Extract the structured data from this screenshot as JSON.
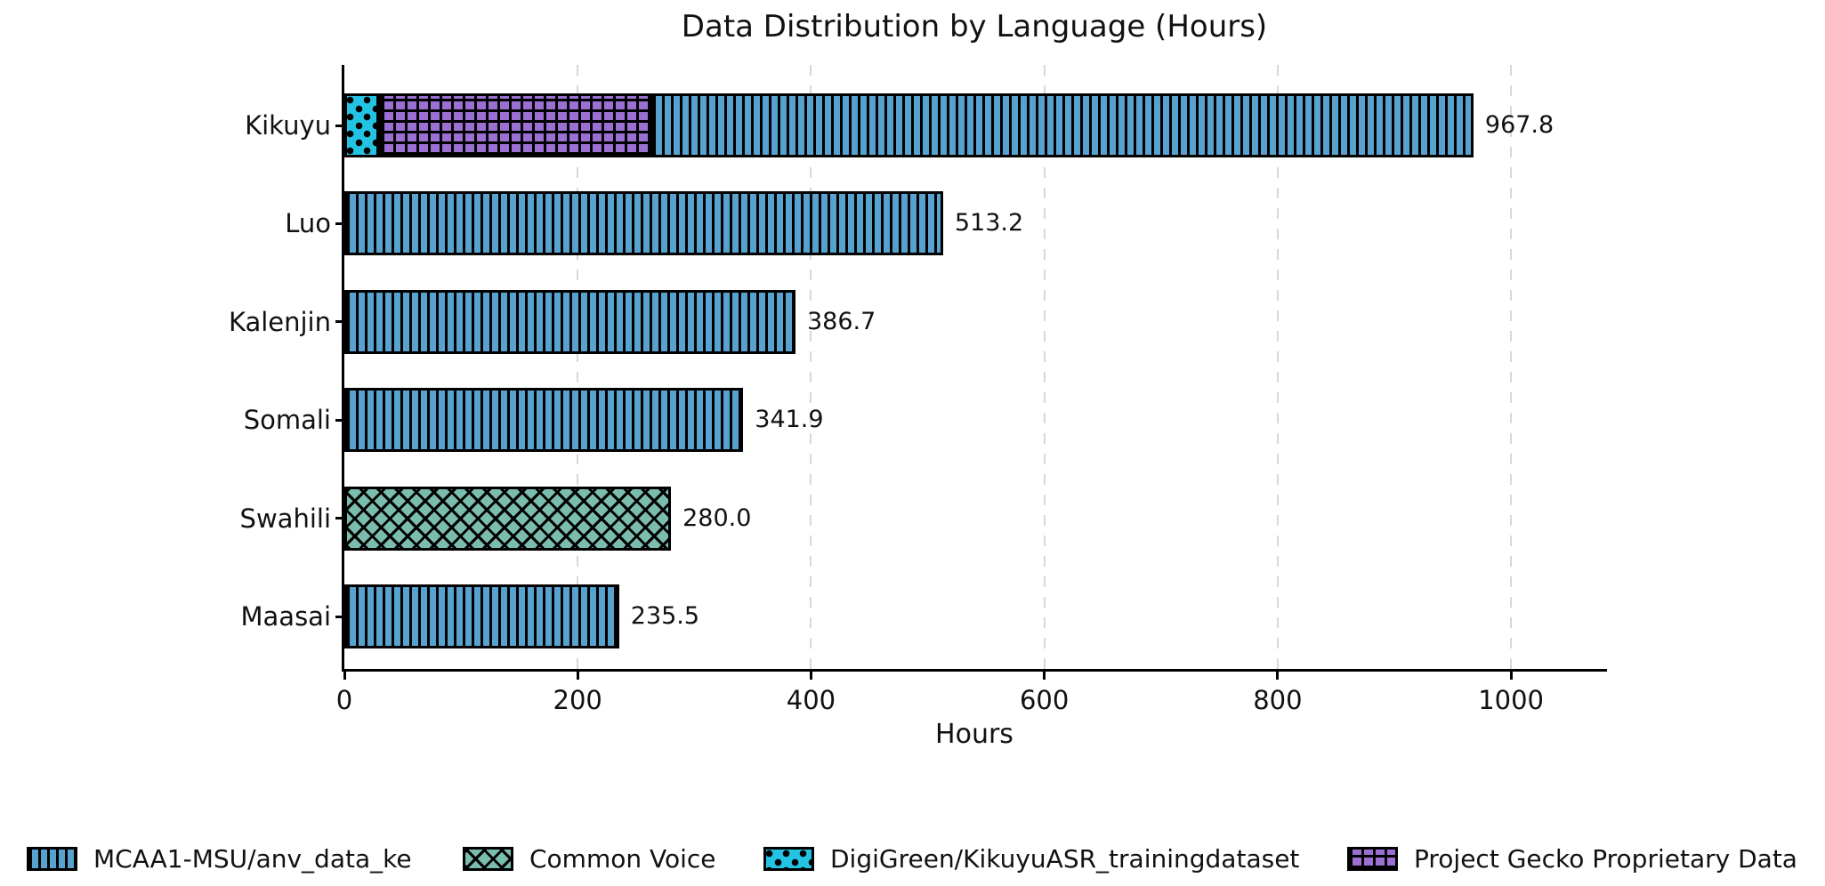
{
  "chart_data": {
    "type": "bar",
    "orientation": "horizontal-stacked",
    "title": "Data Distribution by Language (Hours)",
    "xlabel": "Hours",
    "axis": {
      "xticks": [
        "0",
        "200",
        "400",
        "600",
        "800",
        "1000"
      ],
      "xtick_values": [
        0,
        200,
        400,
        600,
        800,
        1000
      ],
      "xlim": [
        0,
        1080
      ],
      "grid": "vertical-dashed"
    },
    "categories": [
      "Kikuyu",
      "Luo",
      "Kalenjin",
      "Somali",
      "Swahili",
      "Maasai"
    ],
    "totals": [
      967.8,
      513.2,
      386.7,
      341.9,
      280.0,
      235.5
    ],
    "bars": [
      {
        "label": "Kikuyu",
        "total_label": "967.8",
        "segments": [
          {
            "source": "DigiGreen/KikuyuASR_trainingdataset",
            "hours": 30.0
          },
          {
            "source": "Project Gecko Proprietary Data",
            "hours": 232.0
          },
          {
            "source": "MCAA1-MSU/anv_data_ke",
            "hours": 705.8
          }
        ]
      },
      {
        "label": "Luo",
        "total_label": "513.2",
        "segments": [
          {
            "source": "MCAA1-MSU/anv_data_ke",
            "hours": 513.2
          }
        ]
      },
      {
        "label": "Kalenjin",
        "total_label": "386.7",
        "segments": [
          {
            "source": "MCAA1-MSU/anv_data_ke",
            "hours": 386.7
          }
        ]
      },
      {
        "label": "Somali",
        "total_label": "341.9",
        "segments": [
          {
            "source": "MCAA1-MSU/anv_data_ke",
            "hours": 341.9
          }
        ]
      },
      {
        "label": "Swahili",
        "total_label": "280.0",
        "segments": [
          {
            "source": "Common Voice",
            "hours": 280.0
          }
        ]
      },
      {
        "label": "Maasai",
        "total_label": "235.5",
        "segments": [
          {
            "source": "MCAA1-MSU/anv_data_ke",
            "hours": 235.5
          }
        ]
      }
    ],
    "sources": {
      "MCAA1-MSU/anv_data_ke": {
        "fill": "#58a2d0",
        "hatch": "vertical-lines"
      },
      "Common Voice": {
        "fill": "#7abcae",
        "hatch": "cross-x"
      },
      "DigiGreen/KikuyuASR_trainingdataset": {
        "fill": "#23c3e3",
        "hatch": "dots"
      },
      "Project Gecko Proprietary Data": {
        "fill": "#9b70d2",
        "hatch": "plus-grid"
      }
    },
    "legend": [
      {
        "name": "MCAA1-MSU/anv_data_ke"
      },
      {
        "name": "Common Voice"
      },
      {
        "name": "DigiGreen/KikuyuASR_trainingdataset"
      },
      {
        "name": "Project Gecko Proprietary Data"
      }
    ],
    "colors": {
      "edge": "#000000",
      "grid": "#d8d8d8",
      "text": "#111111",
      "background": "#ffffff"
    }
  }
}
